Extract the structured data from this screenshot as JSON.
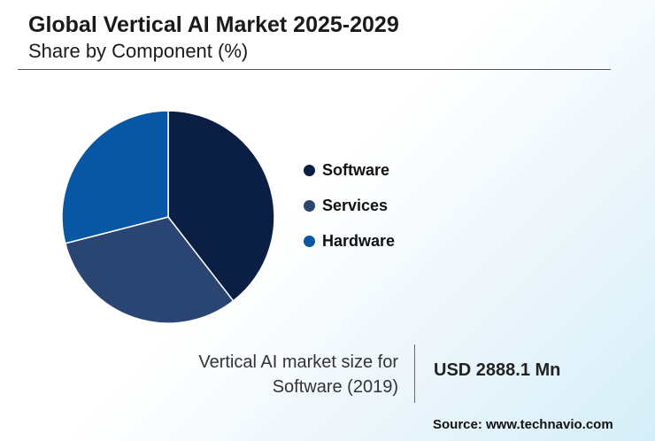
{
  "header": {
    "title": "Global Vertical AI Market 2025-2029",
    "subtitle": "Share by Component (%)"
  },
  "chart_data": {
    "type": "pie",
    "categories": [
      "Software",
      "Services",
      "Hardware"
    ],
    "values": [
      39.5,
      31.5,
      29.0
    ],
    "colors": [
      "#0b1f45",
      "#2b4573",
      "#0857a4"
    ],
    "legend_position": "right"
  },
  "callout": {
    "label_line1": "Vertical AI market size for",
    "label_line2": "Software (2019)",
    "value": "USD 2888.1 Mn"
  },
  "source": "Source: www.technavio.com"
}
